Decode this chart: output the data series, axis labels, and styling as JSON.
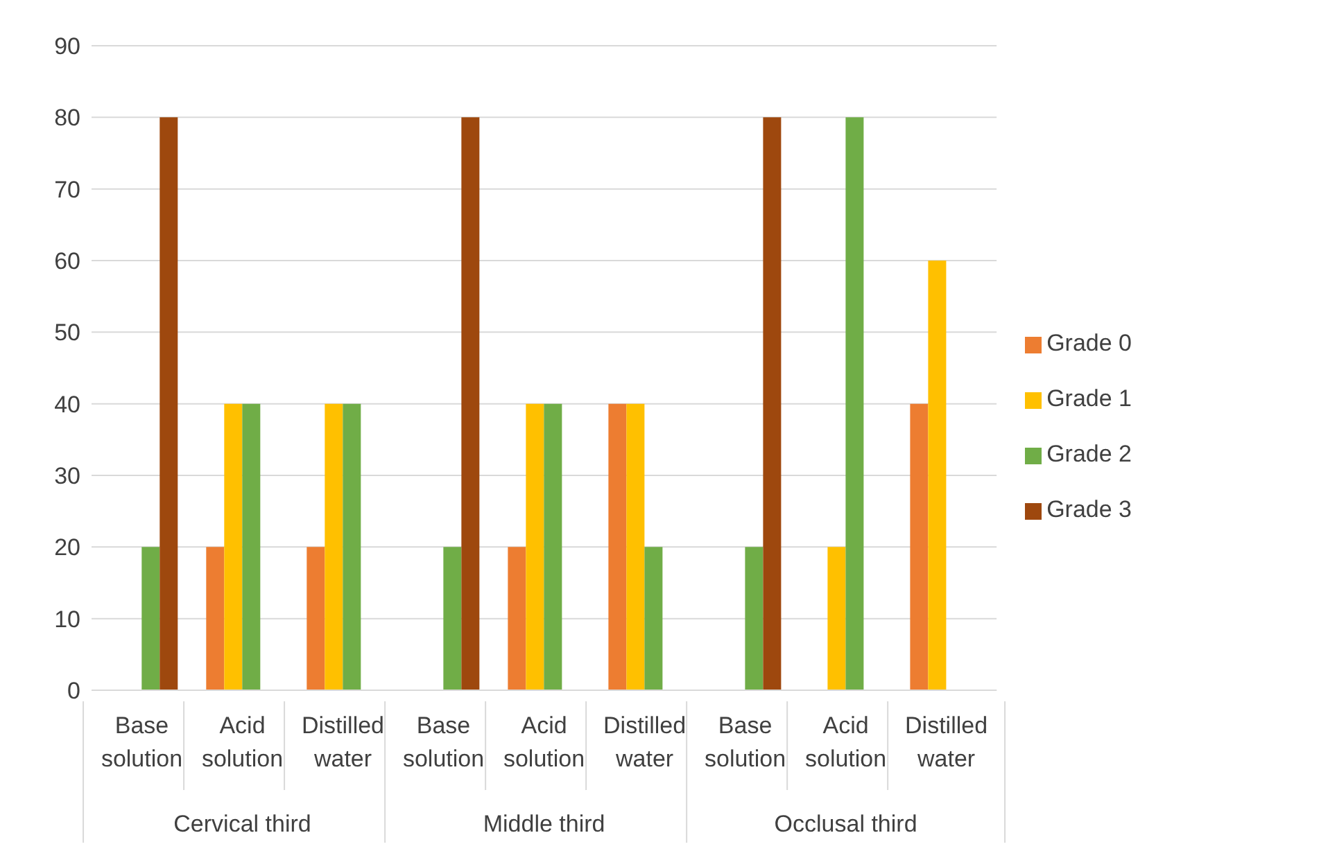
{
  "chart_data": {
    "type": "bar",
    "categories": [
      "Base solution",
      "Acid solution",
      "Distilled water",
      "Base solution",
      "Acid solution",
      "Distilled water",
      "Base solution",
      "Acid solution",
      "Distilled water"
    ],
    "series": [
      {
        "name": "Grade 0",
        "color": "#ed7d31",
        "values": [
          0,
          20,
          20,
          0,
          20,
          40,
          0,
          0,
          40
        ]
      },
      {
        "name": "Grade 1",
        "color": "#ffc000",
        "values": [
          0,
          40,
          40,
          0,
          40,
          40,
          0,
          20,
          60
        ]
      },
      {
        "name": "Grade 2",
        "color": "#70ad47",
        "values": [
          20,
          40,
          40,
          20,
          40,
          20,
          20,
          80,
          0
        ]
      },
      {
        "name": "Grade 3",
        "color": "#9e480e",
        "values": [
          80,
          0,
          0,
          80,
          0,
          0,
          80,
          0,
          0
        ]
      }
    ],
    "annotations": [
      "Cervical third",
      "Middle third",
      "Occlusal third"
    ],
    "ylim": [
      0,
      90
    ],
    "yticks": [
      0,
      10,
      20,
      30,
      40,
      50,
      60,
      70,
      80,
      90
    ],
    "grid": "y",
    "legend": "right"
  }
}
